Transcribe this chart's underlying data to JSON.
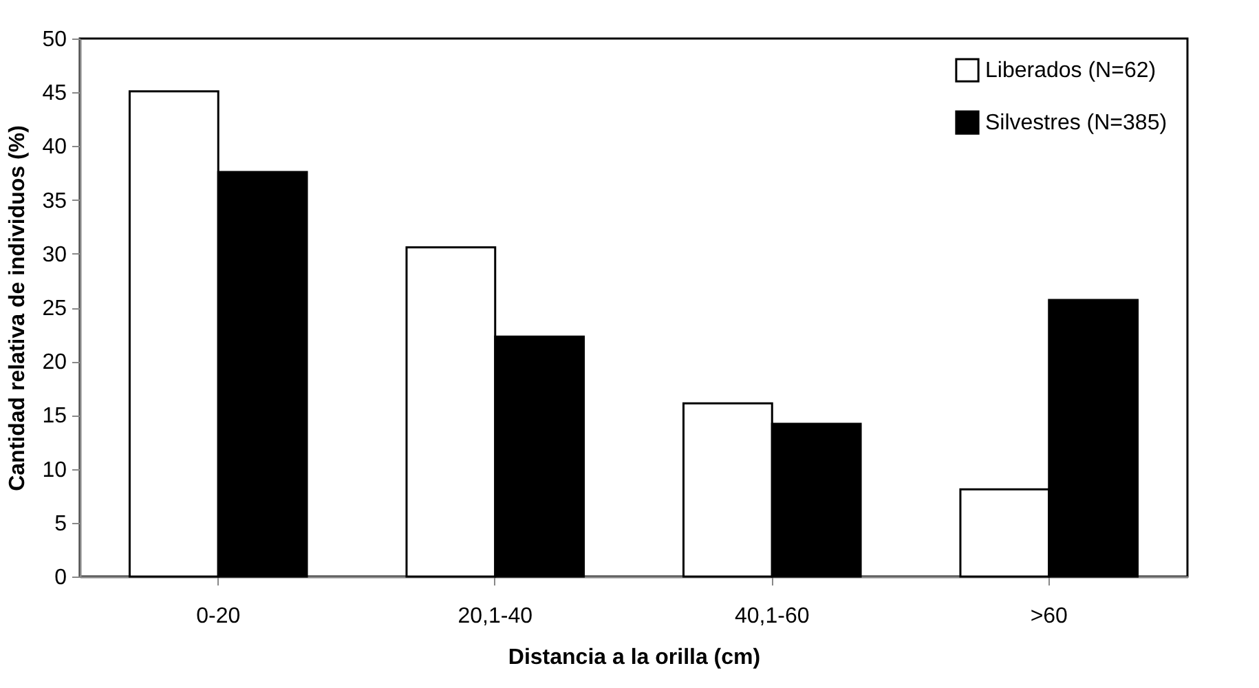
{
  "chart_data": {
    "type": "bar",
    "xlabel": "Distancia a la orilla (cm)",
    "ylabel": "Cantidad relativa  de individuos (%)",
    "categories": [
      "0-20",
      "20,1-40",
      "40,1-60",
      ">60"
    ],
    "series": [
      {
        "name": "Liberados (N=62)",
        "color": "#ffffff",
        "values": [
          45.1,
          30.6,
          16.1,
          8.1
        ]
      },
      {
        "name": "Silvestres (N=385)",
        "color": "#000000",
        "values": [
          37.6,
          22.3,
          14.2,
          25.7
        ]
      }
    ],
    "ylim": [
      0,
      50
    ],
    "yticks": [
      0,
      5,
      10,
      15,
      20,
      25,
      30,
      35,
      40,
      45,
      50
    ],
    "legend": "top right"
  }
}
